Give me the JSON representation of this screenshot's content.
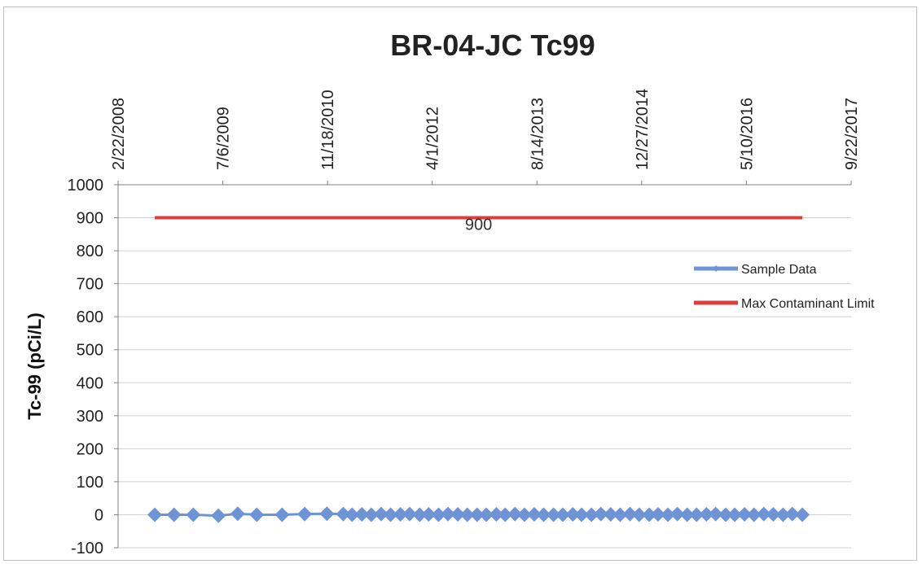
{
  "chart_data": {
    "type": "line",
    "title": "BR-04-JC Tc99",
    "xlabel": "",
    "ylabel": "Tc-99 (pCi/L)",
    "x_axis_type": "date",
    "x_axis_position": "top",
    "x_tick_labels": [
      "2/22/2008",
      "7/6/2009",
      "11/18/2010",
      "4/1/2012",
      "8/14/2013",
      "12/27/2014",
      "5/10/2016",
      "9/22/2017"
    ],
    "xlim": [
      "2008-02-22",
      "2017-09-22"
    ],
    "ylim": [
      -100,
      1000
    ],
    "y_ticks": [
      -100,
      0,
      100,
      200,
      300,
      400,
      500,
      600,
      700,
      800,
      900,
      1000
    ],
    "grid": "horizontal",
    "legend_position": "right",
    "colors": {
      "sample": "#6f94d6",
      "limit": "#d93f3f",
      "grid": "#d0d0d0",
      "axis": "#808080"
    },
    "series": [
      {
        "name": "Sample Data",
        "marker": "diamond",
        "x": [
          "2008-08-15",
          "2008-11-15",
          "2009-02-15",
          "2009-06-15",
          "2009-09-15",
          "2009-12-15",
          "2010-04-15",
          "2010-08-01",
          "2010-11-15",
          "2011-02-01",
          "2011-03-15",
          "2011-05-01",
          "2011-06-15",
          "2011-08-01",
          "2011-09-15",
          "2011-11-01",
          "2011-12-15",
          "2012-02-01",
          "2012-03-15",
          "2012-05-01",
          "2012-06-15",
          "2012-08-01",
          "2012-09-15",
          "2012-11-01",
          "2012-12-15",
          "2013-02-01",
          "2013-03-15",
          "2013-05-01",
          "2013-06-15",
          "2013-08-01",
          "2013-09-15",
          "2013-11-01",
          "2013-12-15",
          "2014-02-01",
          "2014-03-15",
          "2014-05-01",
          "2014-06-15",
          "2014-08-01",
          "2014-09-15",
          "2014-11-01",
          "2014-12-15",
          "2015-02-01",
          "2015-03-15",
          "2015-05-01",
          "2015-06-15",
          "2015-08-01",
          "2015-09-15",
          "2015-11-01",
          "2015-12-15",
          "2016-02-01",
          "2016-03-15",
          "2016-05-01",
          "2016-06-15",
          "2016-08-01",
          "2016-09-15",
          "2016-11-01",
          "2016-12-15",
          "2017-02-01"
        ],
        "y": [
          0,
          0,
          0,
          -3,
          3,
          0,
          0,
          2,
          3,
          2,
          0,
          1,
          0,
          2,
          0,
          1,
          2,
          0,
          1,
          0,
          2,
          1,
          0,
          0,
          0,
          1,
          0,
          2,
          0,
          1,
          0,
          0,
          0,
          1,
          0,
          0,
          2,
          1,
          0,
          2,
          0,
          0,
          1,
          0,
          2,
          0,
          0,
          1,
          2,
          0,
          0,
          1,
          0,
          2,
          1,
          0,
          2,
          0
        ]
      },
      {
        "name": "Max Contaminant Limit",
        "x": [
          "2008-08-15",
          "2017-02-01"
        ],
        "y": [
          900,
          900
        ],
        "data_label": "900"
      }
    ]
  }
}
